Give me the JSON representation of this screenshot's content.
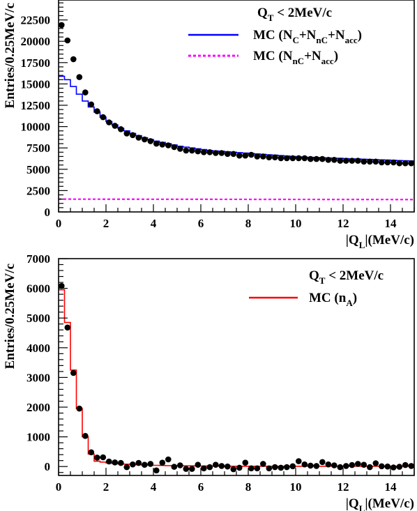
{
  "chart_data": [
    {
      "type": "line",
      "ylabel": "Entries/0.25MeV/c",
      "xlabel": "|Q",
      "xlabel_sub": "L",
      "xlabel_unit": "|(MeV/c)",
      "xlim": [
        0,
        15
      ],
      "ylim": [
        0,
        25000
      ],
      "xticks": [
        0,
        2,
        4,
        6,
        8,
        10,
        12,
        14
      ],
      "yticks": [
        0,
        2500,
        5000,
        7500,
        10000,
        12500,
        15000,
        17500,
        20000,
        22500
      ],
      "ytick_labels": [
        "0",
        "2500",
        "5000",
        "7500",
        "10000",
        "12500",
        "15000",
        "17500",
        "20000",
        "22500"
      ],
      "annotation": {
        "text": "Q",
        "sub": "T",
        "rest": " < 2MeV/c"
      },
      "legend_placement": "top-right",
      "series": [
        {
          "name": "MC (N_C+N_nC+N_acc)",
          "label_parts": [
            "MC (N",
            "C",
            "+N",
            "nC",
            "+N",
            "acc",
            ")"
          ],
          "style": "histogram",
          "color": "#0000ff",
          "values": [
            15900,
            15500,
            14700,
            13800,
            13000,
            12300,
            11700,
            11100,
            10600,
            10200,
            9800,
            9500,
            9200,
            8950,
            8700,
            8500,
            8300,
            8150,
            8000,
            7850,
            7700,
            7600,
            7500,
            7400,
            7300,
            7200,
            7150,
            7100,
            7050,
            7000,
            6950,
            6900,
            6850,
            6800,
            6750,
            6700,
            6650,
            6600,
            6550,
            6500,
            6450,
            6420,
            6400,
            6380,
            6350,
            6320,
            6300,
            6280,
            6250,
            6220,
            6200,
            6180,
            6150,
            6120,
            6100,
            6080,
            6050,
            6020,
            6000,
            5980
          ]
        },
        {
          "name": "MC (N_nC+N_acc)",
          "label_parts": [
            "MC (N",
            "nC",
            "+N",
            "acc",
            ")"
          ],
          "style": "dashed",
          "color": "#ff00ff",
          "x": [
            0,
            15
          ],
          "y": [
            1500,
            1450
          ]
        },
        {
          "name": "Data",
          "style": "points",
          "color": "#000000",
          "x": [
            0.125,
            0.375,
            0.625,
            0.875,
            1.125,
            1.375,
            1.625,
            1.875,
            2.125,
            2.375,
            2.625,
            2.875,
            3.125,
            3.375,
            3.625,
            3.875,
            4.125,
            4.375,
            4.625,
            4.875,
            5.125,
            5.375,
            5.625,
            5.875,
            6.125,
            6.375,
            6.625,
            6.875,
            7.125,
            7.375,
            7.625,
            7.875,
            8.125,
            8.375,
            8.625,
            8.875,
            9.125,
            9.375,
            9.625,
            9.875,
            10.125,
            10.375,
            10.625,
            10.875,
            11.125,
            11.375,
            11.625,
            11.875,
            12.125,
            12.375,
            12.625,
            12.875,
            13.125,
            13.375,
            13.625,
            13.875,
            14.125,
            14.375,
            14.625,
            14.875
          ],
          "y": [
            21900,
            20100,
            17900,
            15800,
            14000,
            12600,
            11800,
            11100,
            10500,
            10100,
            9700,
            9200,
            9000,
            8700,
            8500,
            8300,
            8000,
            7900,
            7800,
            7600,
            7400,
            7200,
            7200,
            7100,
            7000,
            7000,
            6900,
            6900,
            6800,
            6800,
            6600,
            6600,
            6700,
            6500,
            6500,
            6400,
            6400,
            6300,
            6300,
            6300,
            6300,
            6300,
            6200,
            6200,
            6200,
            6100,
            6100,
            6000,
            6000,
            6000,
            6000,
            5900,
            5900,
            5900,
            5800,
            5800,
            5800,
            5700,
            5700,
            5700
          ]
        }
      ]
    },
    {
      "type": "line",
      "ylabel": "Entries/0.25MeV/c",
      "xlabel": "|Q",
      "xlabel_sub": "L",
      "xlabel_unit": "|(MeV/c)",
      "xlim": [
        0,
        15
      ],
      "ylim": [
        -300,
        7000
      ],
      "xticks": [
        0,
        2,
        4,
        6,
        8,
        10,
        12,
        14
      ],
      "yticks": [
        0,
        1000,
        2000,
        3000,
        4000,
        5000,
        6000,
        7000
      ],
      "ytick_labels": [
        "0",
        "1000",
        "2000",
        "3000",
        "4000",
        "5000",
        "6000",
        "7000"
      ],
      "annotation": {
        "text": "Q",
        "sub": "T",
        "rest": " < 2MeV/c"
      },
      "legend_placement": "top-right",
      "series": [
        {
          "name": "MC (n_A)",
          "label_parts": [
            "MC (n",
            "A",
            ")"
          ],
          "style": "histogram",
          "color": "#ff0000",
          "values": [
            5950,
            4850,
            3250,
            1950,
            1000,
            420,
            180,
            150,
            120,
            100,
            90,
            80,
            70,
            60,
            50,
            45,
            40,
            35,
            30,
            30,
            30,
            25,
            25,
            20,
            20,
            20,
            15,
            15,
            15,
            10,
            10,
            10,
            10,
            10,
            10,
            10,
            10,
            10,
            10,
            10,
            10,
            10,
            10,
            10,
            10,
            10,
            10,
            10,
            10,
            10,
            10,
            10,
            10,
            10,
            10,
            10,
            10,
            10,
            10,
            10
          ]
        },
        {
          "name": "Data",
          "style": "points",
          "color": "#000000",
          "x": [
            0.125,
            0.375,
            0.625,
            0.875,
            1.125,
            1.375,
            1.625,
            1.875,
            2.125,
            2.375,
            2.625,
            2.875,
            3.125,
            3.375,
            3.625,
            3.875,
            4.125,
            4.375,
            4.625,
            4.875,
            5.125,
            5.375,
            5.625,
            5.875,
            6.125,
            6.375,
            6.625,
            6.875,
            7.125,
            7.375,
            7.625,
            7.875,
            8.125,
            8.375,
            8.625,
            8.875,
            9.125,
            9.375,
            9.625,
            9.875,
            10.125,
            10.375,
            10.625,
            10.875,
            11.125,
            11.375,
            11.625,
            11.875,
            12.125,
            12.375,
            12.625,
            12.875,
            13.125,
            13.375,
            13.625,
            13.875,
            14.125,
            14.375,
            14.625,
            14.875
          ],
          "y": [
            6080,
            4680,
            3150,
            1950,
            1030,
            480,
            300,
            310,
            170,
            140,
            120,
            -20,
            70,
            120,
            60,
            90,
            -130,
            130,
            240,
            -10,
            40,
            -80,
            -80,
            60,
            -60,
            -20,
            60,
            20,
            0,
            -90,
            -40,
            130,
            -60,
            -60,
            90,
            -60,
            -20,
            -40,
            -20,
            10,
            180,
            70,
            30,
            20,
            150,
            70,
            40,
            -20,
            20,
            50,
            90,
            60,
            -20,
            110,
            10,
            0,
            -30,
            -10,
            50,
            20
          ]
        }
      ]
    }
  ]
}
